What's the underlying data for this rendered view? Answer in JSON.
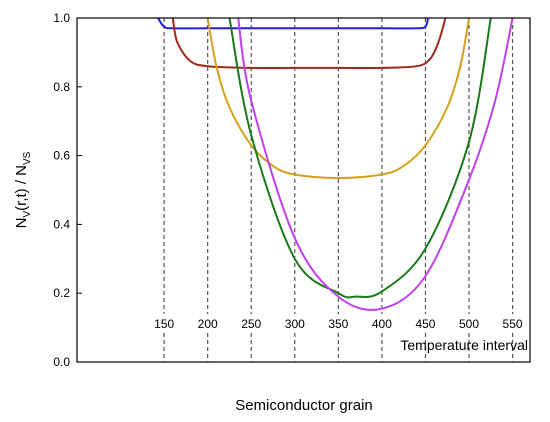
{
  "chart_data": {
    "type": "line",
    "xlabel": "Semiconductor grain",
    "ylabel": {
      "main": "N",
      "sub1": "V",
      "mid": "(r,t) / N",
      "sub2": "VS"
    },
    "annotation": "Temperature interval",
    "xlim": [
      50,
      570
    ],
    "ylim": [
      0,
      1.0
    ],
    "yticks": [
      0.0,
      0.2,
      0.4,
      0.6,
      0.8,
      1.0
    ],
    "ytick_labels": [
      "0.0",
      "0.2",
      "0.4",
      "0.6",
      "0.8",
      "1.0"
    ],
    "dashed_lines_x": [
      150,
      200,
      250,
      300,
      350,
      400,
      450,
      500,
      550
    ],
    "dashed_line_labels": [
      "150",
      "200",
      "250",
      "300",
      "350",
      "400",
      "450",
      "500",
      "550"
    ],
    "grid": false,
    "series": [
      {
        "color": "#1f1fdd",
        "x": [
          143,
          150,
          160,
          200,
          250,
          300,
          350,
          400,
          440,
          450,
          453
        ],
        "y": [
          1.0,
          0.975,
          0.97,
          0.97,
          0.97,
          0.97,
          0.97,
          0.97,
          0.97,
          0.975,
          1.0
        ]
      },
      {
        "color": "#a0291c",
        "x": [
          160,
          165,
          180,
          200,
          250,
          300,
          350,
          400,
          440,
          455,
          465,
          473
        ],
        "y": [
          1.0,
          0.93,
          0.875,
          0.86,
          0.855,
          0.855,
          0.855,
          0.855,
          0.86,
          0.88,
          0.93,
          1.0
        ]
      },
      {
        "color": "#d4a017",
        "x": [
          200,
          210,
          225,
          250,
          275,
          300,
          350,
          400,
          425,
          450,
          475,
          490,
          500
        ],
        "y": [
          1.0,
          0.86,
          0.74,
          0.63,
          0.57,
          0.545,
          0.535,
          0.545,
          0.57,
          0.63,
          0.74,
          0.86,
          1.0
        ]
      },
      {
        "color": "#1a7a1a",
        "x": [
          225,
          250,
          300,
          350,
          370,
          400,
          450,
          500,
          525
        ],
        "y": [
          1.0,
          0.66,
          0.3,
          0.2,
          0.19,
          0.205,
          0.33,
          0.64,
          1.0
        ]
      },
      {
        "color": "#c040ee",
        "x": [
          235,
          250,
          300,
          350,
          400,
          450,
          500,
          530,
          550
        ],
        "y": [
          1.0,
          0.76,
          0.36,
          0.19,
          0.155,
          0.25,
          0.53,
          0.76,
          1.0
        ]
      }
    ]
  }
}
